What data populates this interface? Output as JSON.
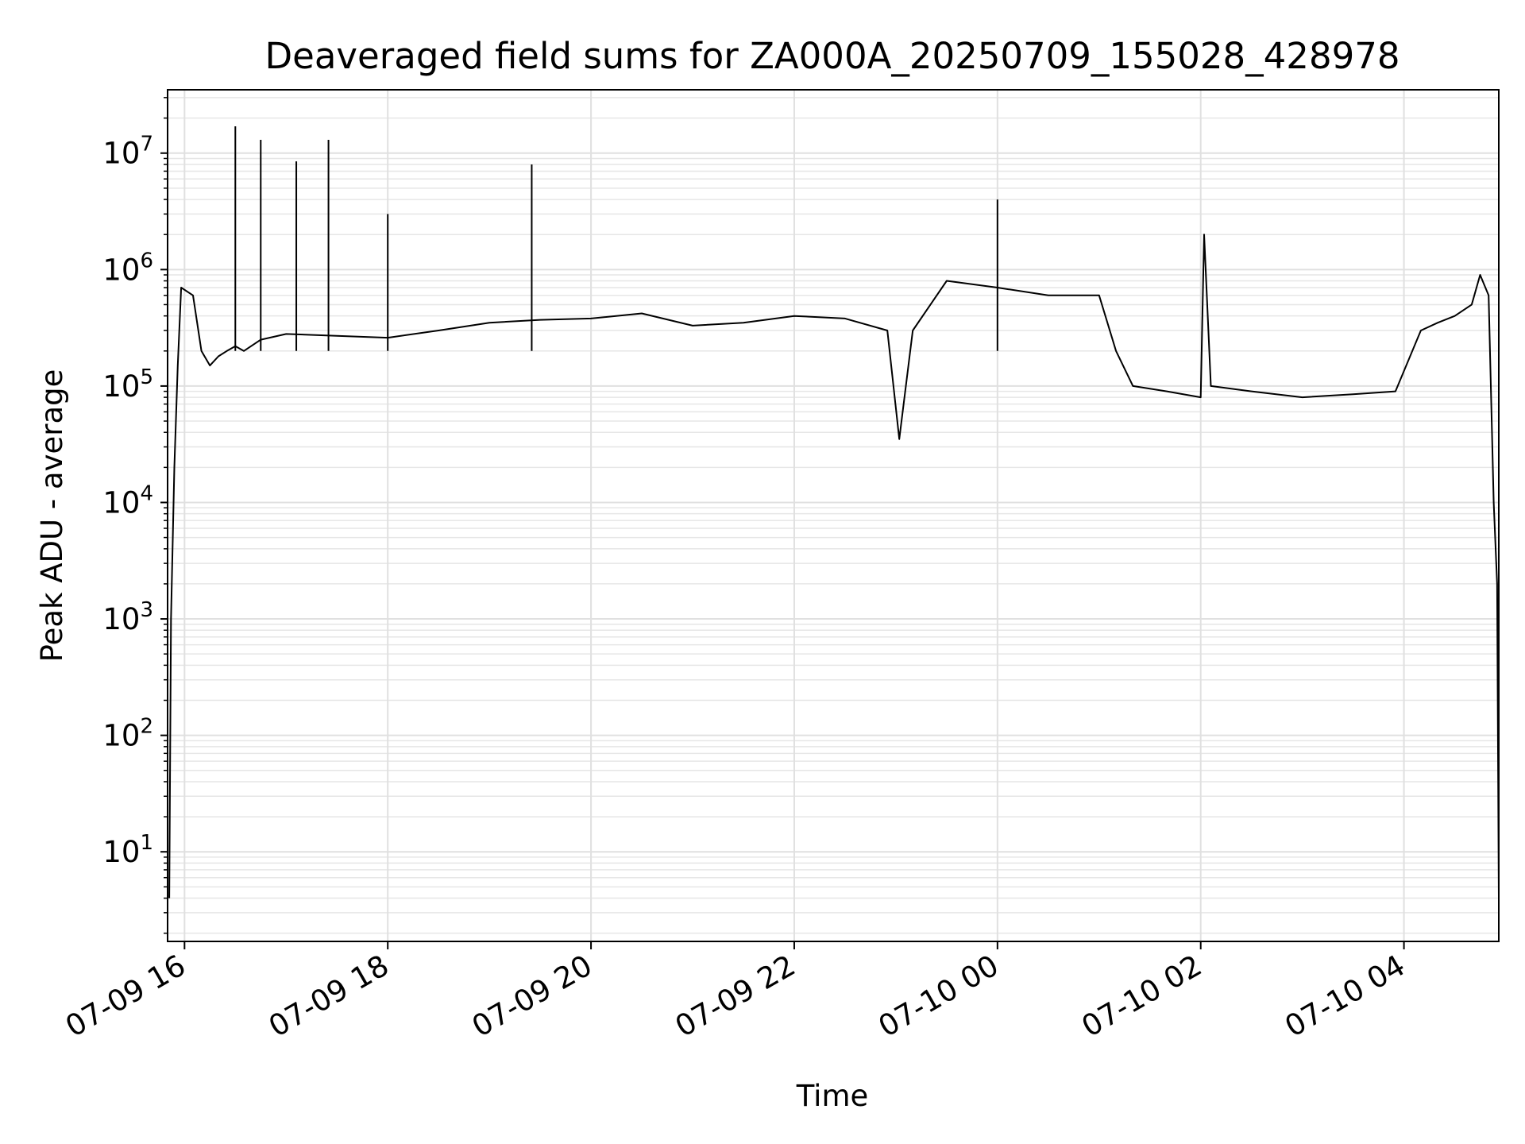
{
  "chart_data": {
    "type": "line",
    "title": "Deaveraged field sums for ZA000A_20250709_155028_428978",
    "xlabel": "Time",
    "ylabel": "Peak ADU - average",
    "x_axis": {
      "type": "time",
      "range": [
        "2025-07-09 15:50",
        "2025-07-10 04:56"
      ],
      "ticks": [
        "2025-07-09 16:00",
        "2025-07-09 18:00",
        "2025-07-09 20:00",
        "2025-07-09 22:00",
        "2025-07-10 00:00",
        "2025-07-10 02:00",
        "2025-07-10 04:00"
      ],
      "tick_labels": [
        "07-09 16",
        "07-09 18",
        "07-09 20",
        "07-09 22",
        "07-10 00",
        "07-10 02",
        "07-10 04"
      ]
    },
    "y_axis": {
      "scale": "log",
      "range": [
        1.7,
        35000000
      ],
      "ticks": [
        10,
        100,
        1000,
        10000,
        100000,
        1000000,
        10000000
      ],
      "tick_labels": [
        {
          "base": "10",
          "exp": "1"
        },
        {
          "base": "10",
          "exp": "2"
        },
        {
          "base": "10",
          "exp": "3"
        },
        {
          "base": "10",
          "exp": "4"
        },
        {
          "base": "10",
          "exp": "5"
        },
        {
          "base": "10",
          "exp": "6"
        },
        {
          "base": "10",
          "exp": "7"
        }
      ]
    },
    "grid": true,
    "legend": "none",
    "line_color": "#000000",
    "series": [
      {
        "x": [
          "2025-07-09 15:51",
          "2025-07-09 15:52",
          "2025-07-09 15:54",
          "2025-07-09 15:56",
          "2025-07-09 15:58",
          "2025-07-09 16:05",
          "2025-07-09 16:10",
          "2025-07-09 16:15",
          "2025-07-09 16:20",
          "2025-07-09 16:25",
          "2025-07-09 16:30",
          "2025-07-09 16:35",
          "2025-07-09 16:45",
          "2025-07-09 17:00",
          "2025-07-09 17:30",
          "2025-07-09 18:00",
          "2025-07-09 18:30",
          "2025-07-09 19:00",
          "2025-07-09 19:30",
          "2025-07-09 20:00",
          "2025-07-09 20:30",
          "2025-07-09 21:00",
          "2025-07-09 21:30",
          "2025-07-09 22:00",
          "2025-07-09 22:30",
          "2025-07-09 22:55",
          "2025-07-09 23:02",
          "2025-07-09 23:10",
          "2025-07-09 23:30",
          "2025-07-10 00:00",
          "2025-07-10 00:30",
          "2025-07-10 01:00",
          "2025-07-10 01:10",
          "2025-07-10 01:20",
          "2025-07-10 01:40",
          "2025-07-10 02:00",
          "2025-07-10 02:02",
          "2025-07-10 02:06",
          "2025-07-10 02:30",
          "2025-07-10 03:00",
          "2025-07-10 03:30",
          "2025-07-10 03:55",
          "2025-07-10 04:10",
          "2025-07-10 04:20",
          "2025-07-10 04:30",
          "2025-07-10 04:40",
          "2025-07-10 04:45",
          "2025-07-10 04:50",
          "2025-07-10 04:53",
          "2025-07-10 04:55",
          "2025-07-10 04:56"
        ],
        "y": [
          4,
          1000,
          20000,
          150000,
          700000,
          600000,
          200000,
          150000,
          180000,
          200000,
          220000,
          200000,
          250000,
          280000,
          270000,
          260000,
          300000,
          350000,
          370000,
          380000,
          420000,
          330000,
          350000,
          400000,
          380000,
          300000,
          35000,
          300000,
          800000,
          700000,
          600000,
          600000,
          200000,
          100000,
          90000,
          80000,
          2000000,
          100000,
          90000,
          80000,
          85000,
          90000,
          300000,
          350000,
          400000,
          500000,
          900000,
          600000,
          10000,
          2000,
          4
        ]
      }
    ],
    "peaks": {
      "x": [
        "2025-07-09 16:30",
        "2025-07-09 16:45",
        "2025-07-09 17:06",
        "2025-07-09 17:25",
        "2025-07-09 18:00",
        "2025-07-09 19:25",
        "2025-07-10 00:00"
      ],
      "y": [
        17000000,
        13000000,
        8500000,
        13000000,
        3000000,
        8000000,
        4000000
      ]
    }
  }
}
